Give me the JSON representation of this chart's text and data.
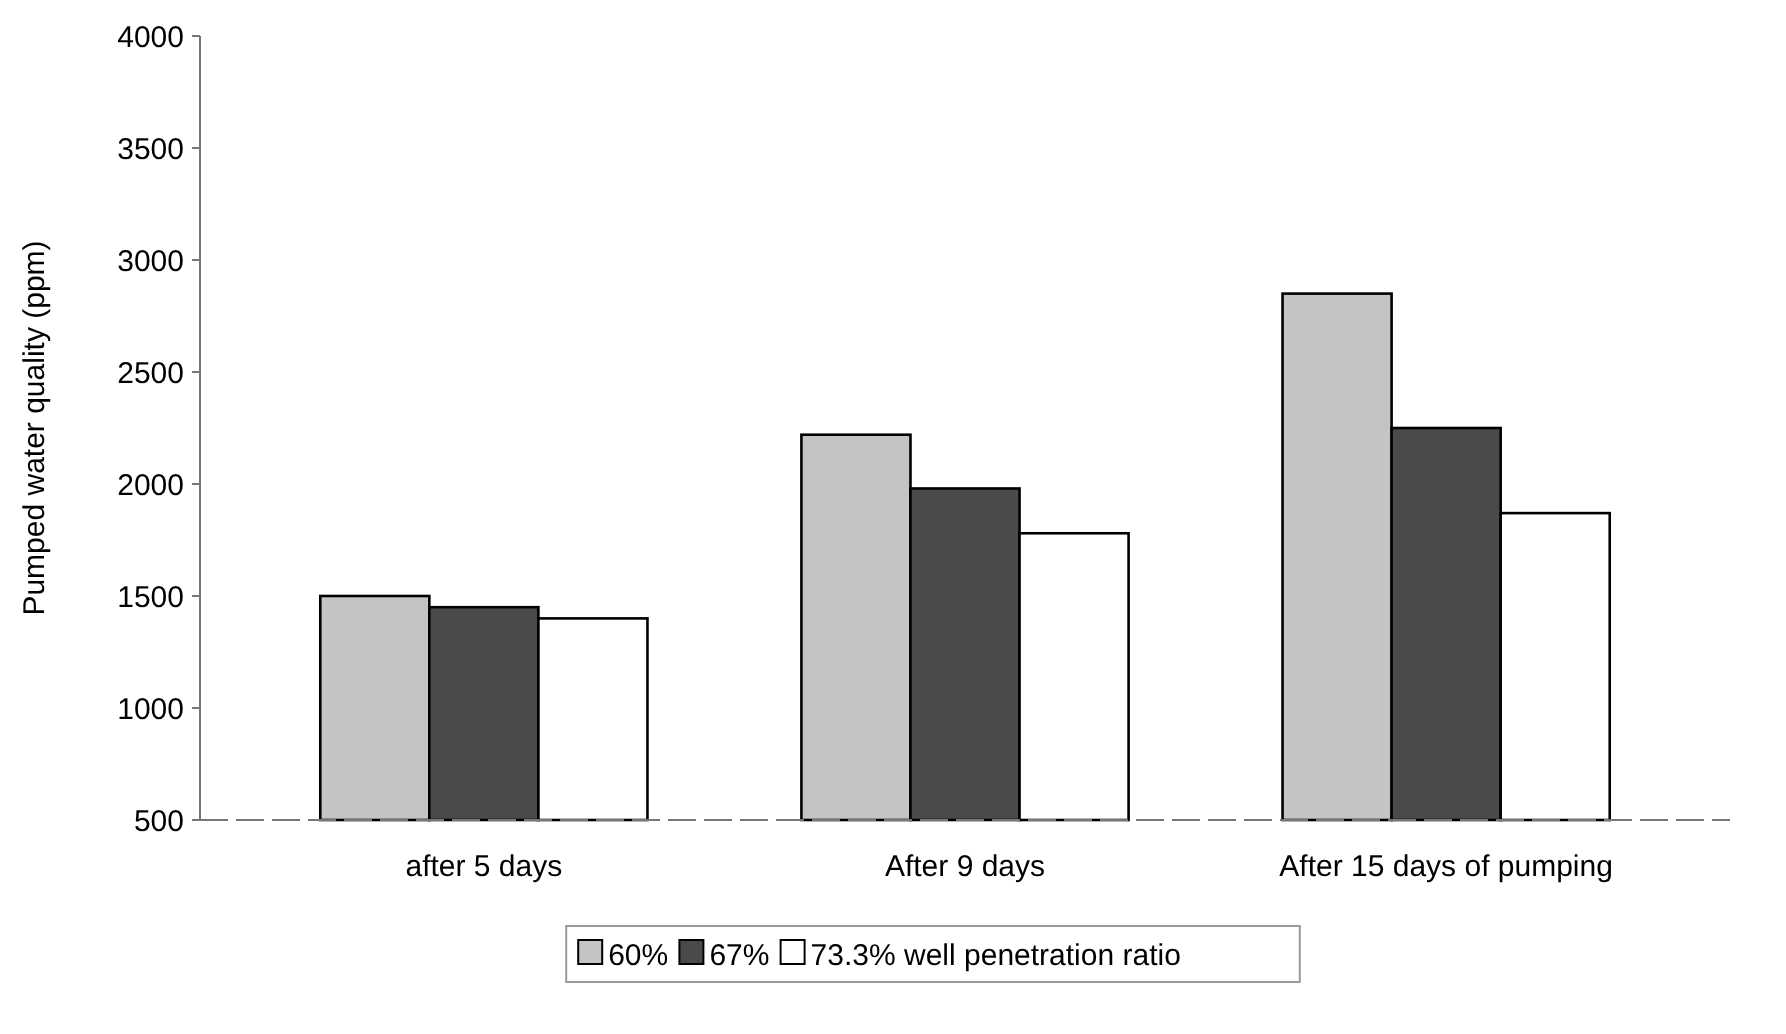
{
  "chart_data": {
    "type": "bar",
    "ylabel": "Pumped water quality (ppm)",
    "categories": [
      "after 5 days",
      "After 9 days",
      "After 15 days of pumping"
    ],
    "series": [
      {
        "name": "60%",
        "color": "#c4c4c4",
        "values": [
          1500,
          2220,
          2850
        ]
      },
      {
        "name": "67%",
        "color": "#4a4a4a",
        "values": [
          1450,
          1980,
          2250
        ]
      },
      {
        "name": "73.3% well penetration ratio",
        "color": "#ffffff",
        "values": [
          1400,
          1780,
          1870
        ]
      }
    ],
    "ylim": [
      500,
      4000
    ],
    "yticks": [
      500,
      1000,
      1500,
      2000,
      2500,
      3000,
      3500,
      4000
    ],
    "grid": false,
    "legend": "bottom"
  }
}
